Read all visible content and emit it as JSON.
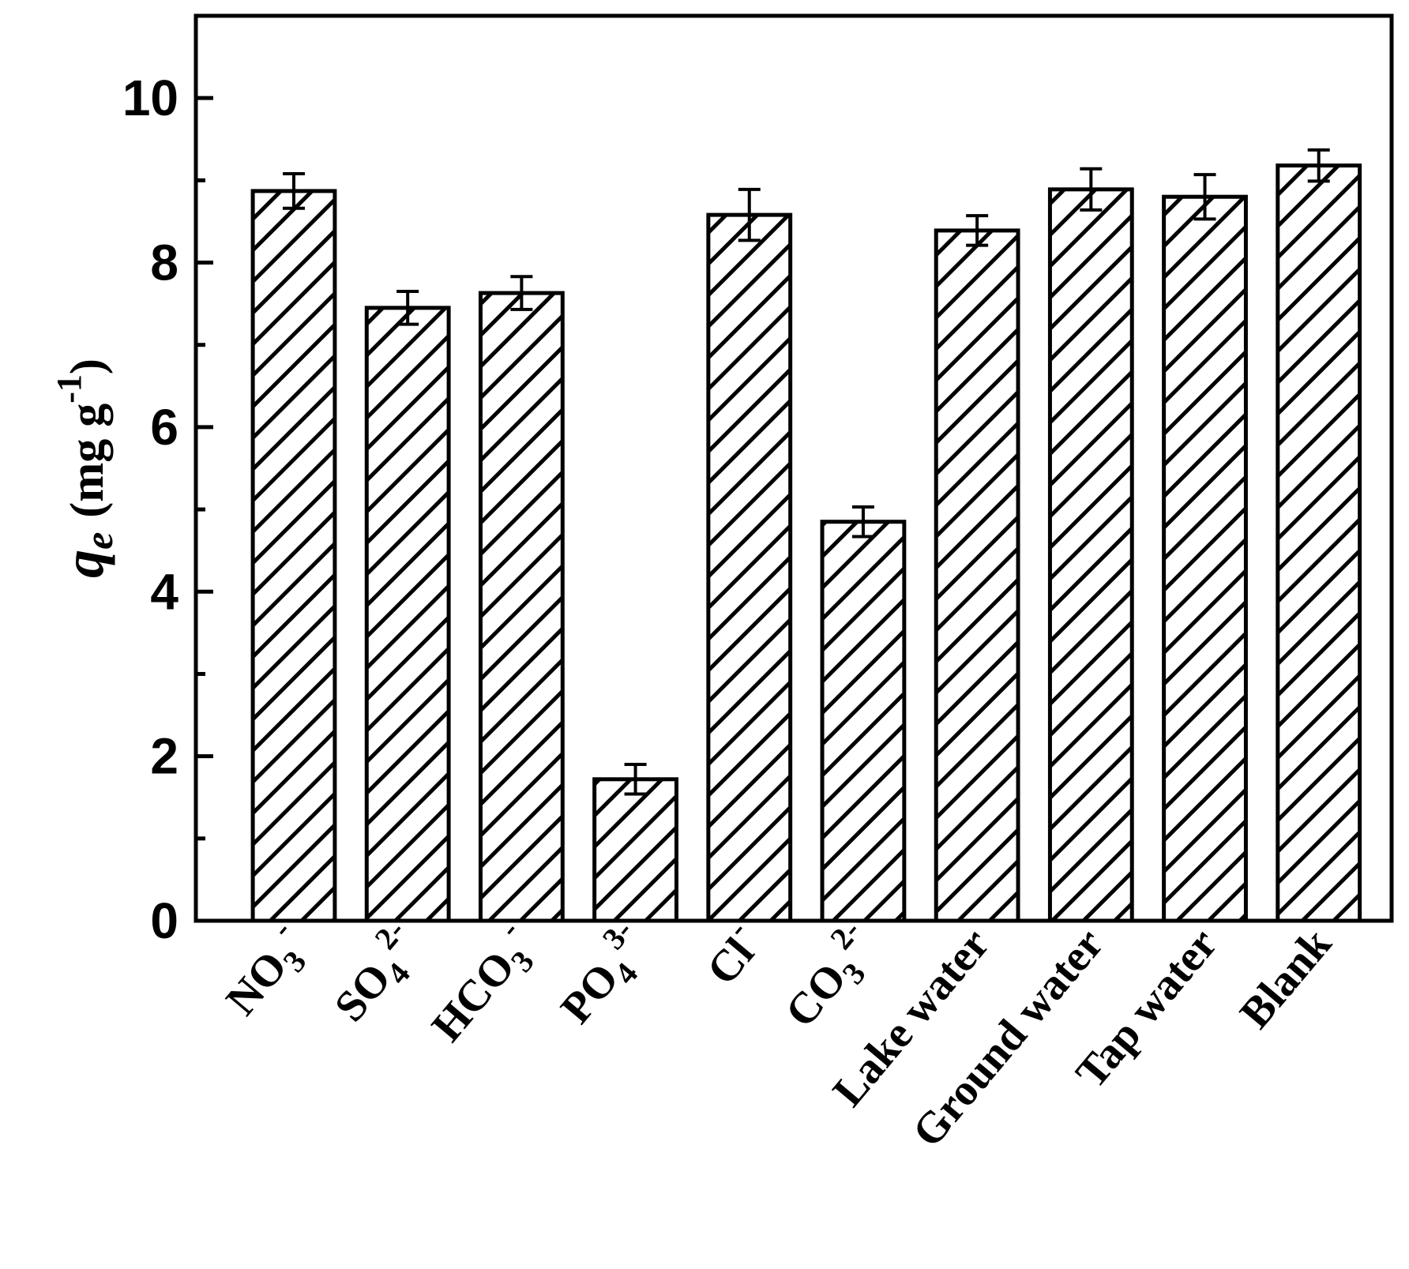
{
  "chart_data": {
    "type": "bar",
    "ylabel": {
      "symbol": "q",
      "subscript": "e",
      "unit": "(mg g",
      "unit_sup": "-1",
      "unit_close": ")"
    },
    "ylim": [
      0,
      11
    ],
    "yticks": [
      0,
      2,
      4,
      6,
      8,
      10
    ],
    "y_minor_step": 1,
    "grid": false,
    "legend": "none",
    "fill_pattern": "diagonal-hatch",
    "bar_color": "#000000",
    "categories": [
      {
        "base": "NO",
        "sub": "3",
        "sup": "-"
      },
      {
        "base": "SO",
        "sub": "4",
        "sup": "2-"
      },
      {
        "base": "HCO",
        "sub": "3",
        "sup": "-"
      },
      {
        "base": "PO",
        "sub": "4",
        "sup": "3-"
      },
      {
        "base": "Cl",
        "sub": "",
        "sup": "-"
      },
      {
        "base": "CO",
        "sub": "3",
        "sup": "2-"
      },
      {
        "base": "Lake water",
        "sub": "",
        "sup": ""
      },
      {
        "base": "Ground water",
        "sub": "",
        "sup": ""
      },
      {
        "base": "Tap water",
        "sub": "",
        "sup": ""
      },
      {
        "base": "Blank",
        "sub": "",
        "sup": ""
      }
    ],
    "values": [
      8.87,
      7.45,
      7.63,
      1.72,
      8.58,
      4.85,
      8.39,
      8.89,
      8.8,
      9.18
    ],
    "errors": [
      0.21,
      0.2,
      0.2,
      0.18,
      0.31,
      0.18,
      0.18,
      0.25,
      0.27,
      0.19
    ]
  }
}
